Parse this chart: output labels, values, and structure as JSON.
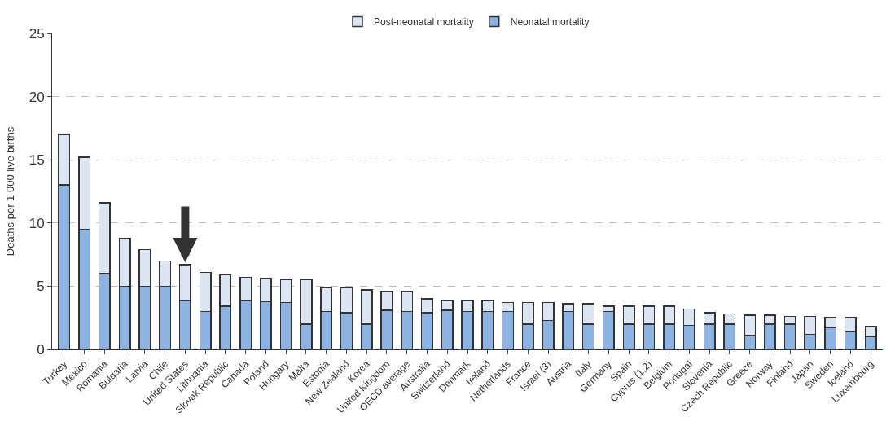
{
  "chart_data": {
    "type": "bar",
    "stacked": true,
    "ylabel": "Deaths per 1 000 live births",
    "categories": [
      "Turkey",
      "Mexico",
      "Romania",
      "Bulgaria",
      "Latvia",
      "Chile",
      "United States",
      "Lithuania",
      "Slovak Republic",
      "Canada",
      "Poland",
      "Hungary",
      "Malta",
      "Estonia",
      "New Zealand",
      "Korea",
      "United Kingdom",
      "OECD average",
      "Australia",
      "Switzerland",
      "Denmark",
      "Ireland",
      "Netherlands",
      "France",
      "Israel (3)",
      "Austria",
      "Italy",
      "Germany",
      "Spain",
      "Cyprus (1,2)",
      "Belgium",
      "Portugal",
      "Slovenia",
      "Czech Republic",
      "Greece",
      "Norway",
      "Finland",
      "Japan",
      "Sweden",
      "Iceland",
      "Luxembourg"
    ],
    "series": [
      {
        "name": "Neonatal mortality",
        "color": "#8db3e2",
        "values": [
          13.0,
          9.5,
          6.0,
          5.0,
          5.0,
          5.0,
          3.9,
          3.0,
          3.4,
          3.9,
          3.8,
          3.7,
          2.0,
          3.0,
          2.9,
          2.0,
          3.1,
          3.0,
          2.9,
          3.1,
          3.0,
          3.0,
          3.0,
          2.0,
          2.3,
          3.0,
          2.0,
          3.0,
          2.0,
          2.0,
          2.0,
          1.9,
          2.0,
          2.0,
          1.1,
          2.0,
          2.0,
          1.2,
          1.7,
          1.4,
          1.0
        ]
      },
      {
        "name": "Post-neonatal mortality",
        "color": "#dce6f2",
        "values": [
          4.0,
          5.7,
          5.6,
          3.8,
          2.9,
          2.0,
          2.8,
          3.1,
          2.5,
          1.8,
          1.8,
          1.8,
          3.5,
          1.9,
          2.0,
          2.7,
          1.5,
          1.6,
          1.1,
          0.8,
          0.9,
          0.9,
          0.7,
          1.7,
          1.4,
          0.6,
          1.6,
          0.4,
          1.4,
          1.4,
          1.4,
          1.3,
          0.9,
          0.8,
          1.6,
          0.7,
          0.6,
          1.4,
          0.8,
          1.1,
          0.8
        ]
      }
    ],
    "ylim": [
      0,
      25
    ],
    "yticks": [
      0,
      5,
      10,
      15,
      20,
      25
    ],
    "grid": "y",
    "legend": "top"
  }
}
